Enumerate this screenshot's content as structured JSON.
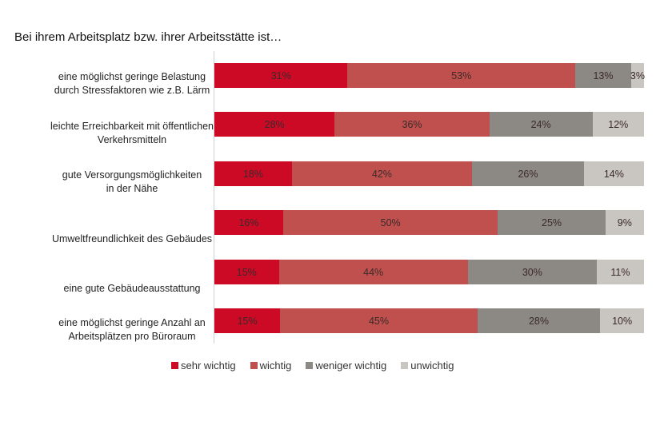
{
  "chart_data": {
    "type": "bar",
    "orientation": "horizontal",
    "stacked": true,
    "normalized": true,
    "title": "Bei ihrem Arbeitsplatz bzw. ihrer Arbeitsstätte ist…",
    "categories": [
      "eine möglichst geringe Belastung durch Stressfaktoren wie z.B. Lärm",
      "leichte Erreichbarkeit mit öffentlichen Verkehrsmitteln",
      "gute Versorgungsmöglichkeiten in der Nähe",
      "Umweltfreundlichkeit des Gebäudes",
      "eine gute Gebäudeausstattung",
      "eine möglichst geringe Anzahl an Arbeitsplätzen pro Büroraum"
    ],
    "category_lines": [
      [
        "eine möglichst geringe Belastung",
        "durch Stressfaktoren wie z.B. Lärm"
      ],
      [
        "leichte Erreichbarkeit mit öffentlichen",
        "Verkehrsmitteln"
      ],
      [
        "gute Versorgungsmöglichkeiten",
        "in der Nähe"
      ],
      [
        "Umweltfreundlichkeit des Gebäudes"
      ],
      [
        "eine gute Gebäudeausstattung"
      ],
      [
        "eine möglichst geringe Anzahl an",
        "Arbeitsplätzen pro Büroraum"
      ]
    ],
    "series": [
      {
        "name": "sehr wichtig",
        "color": "#cc0a26",
        "values": [
          31,
          28,
          18,
          16,
          15,
          15
        ]
      },
      {
        "name": "wichtig",
        "color": "#c0504d",
        "values": [
          53,
          36,
          42,
          50,
          44,
          45
        ]
      },
      {
        "name": "weniger wichtig",
        "color": "#8c8884",
        "values": [
          13,
          24,
          26,
          25,
          30,
          28
        ]
      },
      {
        "name": "unwichtig",
        "color": "#c9c5c1",
        "values": [
          3,
          12,
          14,
          9,
          11,
          10
        ]
      }
    ],
    "value_suffix": "%",
    "legend_position": "bottom",
    "grid": false
  }
}
